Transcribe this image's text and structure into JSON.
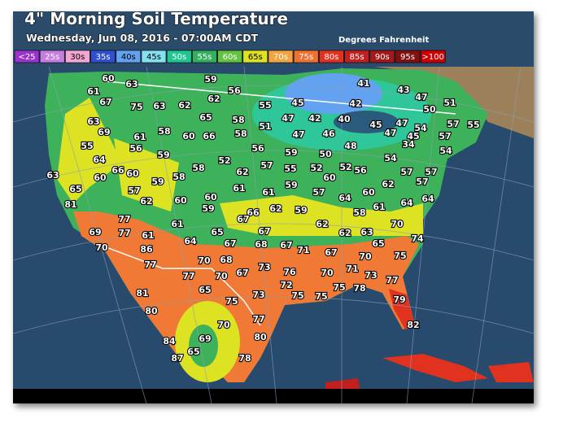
{
  "header": {
    "title": "4\" Morning Soil Temperature",
    "subtitle": "Wednesday, Jun 08, 2016 - 07:00AM CDT",
    "units": "Degrees Fahrenheit"
  },
  "legend": [
    {
      "label": "<25",
      "color": "#9a32cc"
    },
    {
      "label": "25s",
      "color": "#c77de0"
    },
    {
      "label": "30s",
      "color": "#f2a6d2"
    },
    {
      "label": "35s",
      "color": "#2f4fd0"
    },
    {
      "label": "40s",
      "color": "#63a2f0"
    },
    {
      "label": "45s",
      "color": "#84e2f0"
    },
    {
      "label": "50s",
      "color": "#1fc690"
    },
    {
      "label": "55s",
      "color": "#33b05e"
    },
    {
      "label": "60s",
      "color": "#63c23e"
    },
    {
      "label": "65s",
      "color": "#dde222"
    },
    {
      "label": "70s",
      "color": "#f2a441"
    },
    {
      "label": "75s",
      "color": "#f07030"
    },
    {
      "label": "80s",
      "color": "#e0321f"
    },
    {
      "label": "85s",
      "color": "#c21f1f"
    },
    {
      "label": "90s",
      "color": "#a31818"
    },
    {
      "label": "95s",
      "color": "#821010"
    },
    {
      "label": ">100",
      "color": "#d00000"
    }
  ],
  "stations": [
    60,
    63,
    59,
    56,
    61,
    67,
    75,
    63,
    62,
    62,
    55,
    45,
    41,
    43,
    47,
    42,
    50,
    51,
    63,
    69,
    65,
    58,
    47,
    42,
    40,
    45,
    47,
    54,
    57,
    55,
    55,
    61,
    58,
    56,
    60,
    66,
    58,
    51,
    47,
    46,
    48,
    47,
    45,
    57,
    54,
    64,
    59,
    58,
    52,
    56,
    59,
    50,
    54,
    34,
    63,
    60,
    66,
    60,
    59,
    58,
    62,
    57,
    55,
    52,
    60,
    52,
    56,
    57,
    57,
    65,
    57,
    62,
    60,
    60,
    61,
    61,
    59,
    57,
    64,
    60,
    62,
    57,
    81,
    59,
    66,
    62,
    59,
    58,
    61,
    64,
    64,
    77,
    61,
    67,
    62,
    70,
    69,
    77,
    61,
    65,
    67,
    62,
    63,
    74,
    70,
    86,
    64,
    67,
    68,
    67,
    71,
    65,
    67,
    77,
    70,
    68,
    73,
    75,
    70,
    77,
    70,
    67,
    76,
    70,
    71,
    73,
    77,
    72,
    65,
    81,
    73,
    75,
    75,
    75,
    78,
    75,
    80,
    79,
    77,
    70,
    80,
    82,
    69,
    84,
    65,
    87,
    78
  ]
}
